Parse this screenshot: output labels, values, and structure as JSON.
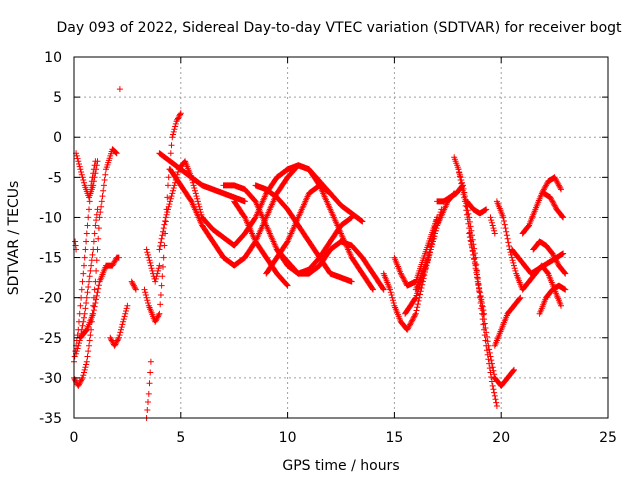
{
  "chart_data": {
    "type": "scatter",
    "title": "Day 093 of 2022, Sidereal Day-to-day VTEC variation (SDTVAR) for receiver bogt",
    "xlabel": "GPS time / hours",
    "ylabel": "SDTVAR / TECUs",
    "xlim": [
      0,
      25
    ],
    "ylim": [
      -35,
      10
    ],
    "xticks": [
      0,
      5,
      10,
      15,
      20,
      25
    ],
    "yticks": [
      10,
      5,
      0,
      -5,
      -10,
      -15,
      -20,
      -25,
      -30,
      -35
    ],
    "grid": true,
    "marker": "+",
    "color": "#ff0000",
    "series": [
      {
        "name": "s1",
        "x": [
          0.0,
          0.2,
          0.4,
          0.6,
          0.8,
          1.0
        ],
        "y": [
          -28,
          -24,
          -18,
          -12,
          -6,
          -3
        ]
      },
      {
        "name": "s2",
        "x": [
          0.0,
          0.2,
          0.4,
          0.6,
          0.8,
          1.0,
          1.2,
          1.5,
          1.8,
          2.0
        ],
        "y": [
          -30,
          -31,
          -30,
          -28,
          -24,
          -18,
          -10,
          -4,
          -1.5,
          -2
        ]
      },
      {
        "name": "s3",
        "x": [
          0.1,
          0.3,
          0.5,
          0.7,
          0.9,
          1.1
        ],
        "y": [
          -2,
          -4,
          -6,
          -7.5,
          -6,
          -3
        ]
      },
      {
        "name": "s4",
        "x": [
          0.1,
          0.3,
          0.6,
          0.9,
          1.2,
          1.5,
          1.8,
          2.0,
          2.1
        ],
        "y": [
          -27,
          -25,
          -24,
          -22,
          -18,
          -16,
          -16,
          -15,
          -15
        ]
      },
      {
        "name": "s5",
        "x": [
          0.3,
          0.5,
          0.7,
          0.9,
          1.0,
          1.1
        ],
        "y": [
          -25,
          -22,
          -18,
          -14,
          -11,
          -9
        ]
      },
      {
        "name": "s6",
        "x": [
          0.05,
          0.1
        ],
        "y": [
          -13,
          -14
        ]
      },
      {
        "name": "s7",
        "x": [
          1.7,
          1.9,
          2.1,
          2.3,
          2.5
        ],
        "y": [
          -25,
          -26,
          -25,
          -23,
          -21
        ]
      },
      {
        "name": "s8",
        "x": [
          2.7,
          2.9
        ],
        "y": [
          -18,
          -19
        ]
      },
      {
        "name": "s9",
        "x": [
          2.15
        ],
        "y": [
          6
        ]
      },
      {
        "name": "s10",
        "x": [
          3.4,
          3.5,
          3.6
        ],
        "y": [
          -35,
          -32,
          -28
        ]
      },
      {
        "name": "s11",
        "x": [
          3.3,
          3.5,
          3.8,
          4.0,
          4.2,
          4.4,
          4.6,
          4.8,
          5.0
        ],
        "y": [
          -19,
          -21,
          -23,
          -22,
          -15,
          -6,
          0,
          2,
          3
        ]
      },
      {
        "name": "s12",
        "x": [
          3.4,
          3.6,
          3.8,
          4.0
        ],
        "y": [
          -14,
          -16,
          -18,
          -16
        ]
      },
      {
        "name": "s13",
        "x": [
          4.0,
          4.3,
          4.6,
          4.9,
          5.2,
          5.5,
          5.8,
          6.0
        ],
        "y": [
          -14,
          -10,
          -7,
          -4,
          -3,
          -5,
          -8,
          -10
        ]
      },
      {
        "name": "s14",
        "x": [
          4.0,
          4.5,
          5.0,
          5.5,
          6.0,
          6.5,
          7.0,
          7.5,
          8.0
        ],
        "y": [
          -2,
          -3,
          -4,
          -5,
          -6,
          -6.5,
          -7,
          -7.5,
          -8
        ]
      },
      {
        "name": "s15",
        "x": [
          4.5,
          5.0,
          5.5,
          6.0,
          6.5,
          7.0,
          7.5,
          8.0,
          8.5,
          9.0,
          9.5,
          10.0,
          10.5,
          11.0,
          11.5,
          12.0,
          12.5,
          13.0,
          13.5
        ],
        "y": [
          -4,
          -6,
          -8,
          -11,
          -13,
          -15,
          -16,
          -15,
          -13,
          -10,
          -7,
          -5,
          -3.5,
          -4,
          -5.5,
          -7,
          -8.5,
          -9.5,
          -10.5
        ]
      },
      {
        "name": "s16",
        "x": [
          6.0,
          6.5,
          7.0,
          7.5,
          8.0,
          8.5,
          9.0,
          9.5,
          10.0,
          10.5,
          11.0,
          11.5,
          12.0,
          12.5,
          13.0,
          13.5,
          14.0
        ],
        "y": [
          -10,
          -11.5,
          -12.5,
          -13.5,
          -12,
          -10,
          -7,
          -5,
          -4,
          -3.5,
          -4,
          -6,
          -9,
          -12,
          -15,
          -17,
          -19
        ]
      },
      {
        "name": "s17",
        "x": [
          7.0,
          7.5,
          8.0,
          8.5,
          9.0,
          9.5,
          10.0,
          10.5,
          11.0,
          11.5,
          12.0,
          12.5,
          13.0,
          13.5,
          14.0,
          14.5
        ],
        "y": [
          -6,
          -6,
          -6.5,
          -8,
          -11,
          -14,
          -16,
          -17,
          -17,
          -16,
          -14,
          -13,
          -13.5,
          -15,
          -17,
          -19
        ]
      },
      {
        "name": "s18",
        "x": [
          7.5,
          8.0,
          8.5,
          9.0,
          9.5,
          10.0
        ],
        "y": [
          -8,
          -10,
          -13,
          -15,
          -17,
          -18.5
        ]
      },
      {
        "name": "s19",
        "x": [
          8.5,
          9.0,
          9.5,
          10.0,
          10.5,
          11.0,
          11.5,
          12.0,
          12.5,
          13.0
        ],
        "y": [
          -6,
          -6.5,
          -7.5,
          -9,
          -11,
          -13,
          -15,
          -17,
          -17.5,
          -18
        ]
      },
      {
        "name": "s20",
        "x": [
          9.0,
          9.5,
          10.0,
          10.5,
          11.0,
          11.5,
          12.0
        ],
        "y": [
          -17,
          -15,
          -13,
          -10,
          -7,
          -6,
          -7
        ]
      },
      {
        "name": "s21",
        "x": [
          9.5,
          10.0,
          10.5,
          11.0,
          11.5,
          12.0,
          12.5,
          13.0
        ],
        "y": [
          -14,
          -15.5,
          -17,
          -16.5,
          -15,
          -13,
          -11,
          -10
        ]
      },
      {
        "name": "s22",
        "x": [
          14.5,
          14.8,
          15.0,
          15.3,
          15.6,
          16.0,
          16.5,
          17.0
        ],
        "y": [
          -17,
          -19,
          -21,
          -23,
          -24,
          -22,
          -16,
          -10
        ]
      },
      {
        "name": "s23",
        "x": [
          15.0,
          15.3,
          15.6,
          16.0,
          16.5,
          17.0
        ],
        "y": [
          -15,
          -17,
          -18.5,
          -18,
          -14,
          -10
        ]
      },
      {
        "name": "s24",
        "x": [
          15.5,
          16.0,
          16.5,
          17.0,
          17.5,
          17.8
        ],
        "y": [
          -22,
          -20,
          -16,
          -11,
          -8,
          -7
        ]
      },
      {
        "name": "s25",
        "x": [
          16.0,
          16.3,
          16.6,
          16.9,
          17.2
        ],
        "y": [
          -19,
          -17,
          -15,
          -12,
          -9
        ]
      },
      {
        "name": "s26",
        "x": [
          17.0,
          17.3,
          17.6,
          17.9,
          18.2
        ],
        "y": [
          -8,
          -8,
          -7.5,
          -7,
          -6
        ]
      },
      {
        "name": "s27",
        "x": [
          17.8,
          18.0,
          18.2,
          18.5,
          18.8,
          19.0,
          19.3,
          19.6,
          19.8
        ],
        "y": [
          -2.5,
          -4,
          -6,
          -10,
          -15,
          -20,
          -26,
          -31,
          -33.5
        ]
      },
      {
        "name": "s28",
        "x": [
          18.0,
          18.3,
          18.6,
          18.9,
          19.2
        ],
        "y": [
          -4,
          -8,
          -13,
          -18,
          -22
        ]
      },
      {
        "name": "s29",
        "x": [
          18.4,
          18.7,
          19.0,
          19.3
        ],
        "y": [
          -8,
          -9,
          -9.5,
          -9
        ]
      },
      {
        "name": "s30",
        "x": [
          18.5,
          18.8,
          19.1,
          19.4,
          19.7,
          20.0,
          20.3,
          20.6
        ],
        "y": [
          -12,
          -16,
          -21,
          -26,
          -30,
          -31,
          -30,
          -29
        ]
      },
      {
        "name": "s31",
        "x": [
          19.5,
          19.7
        ],
        "y": [
          -10,
          -12
        ]
      },
      {
        "name": "s32",
        "x": [
          19.7,
          20.0,
          20.3,
          20.6,
          20.9
        ],
        "y": [
          -26,
          -24,
          -22,
          -21,
          -20
        ]
      },
      {
        "name": "s33",
        "x": [
          19.8,
          20.1,
          20.4,
          20.7,
          21.0,
          21.3,
          21.6,
          21.9,
          22.2,
          22.5,
          22.8
        ],
        "y": [
          -8,
          -10,
          -14,
          -17,
          -19,
          -18,
          -17,
          -16,
          -17,
          -19,
          -21
        ]
      },
      {
        "name": "s34",
        "x": [
          20.5,
          20.8,
          21.1,
          21.4,
          21.7,
          22.0,
          22.3,
          22.6,
          22.9
        ],
        "y": [
          -14,
          -15,
          -16,
          -17,
          -16.5,
          -16,
          -15.5,
          -15,
          -14.5
        ]
      },
      {
        "name": "s35",
        "x": [
          21.0,
          21.3,
          21.6,
          21.9,
          22.2,
          22.5,
          22.8
        ],
        "y": [
          -12,
          -11,
          -9,
          -7,
          -5.5,
          -5,
          -6.5
        ]
      },
      {
        "name": "s36",
        "x": [
          21.5,
          21.8,
          22.1,
          22.4,
          22.7,
          23.0
        ],
        "y": [
          -14,
          -13,
          -13.5,
          -14.5,
          -16,
          -17
        ]
      },
      {
        "name": "s37",
        "x": [
          21.8,
          22.1,
          22.4,
          22.7,
          23.0
        ],
        "y": [
          -22,
          -20,
          -19,
          -18.5,
          -19
        ]
      },
      {
        "name": "s38",
        "x": [
          22.0,
          22.3,
          22.6,
          22.9
        ],
        "y": [
          -7,
          -7.5,
          -9,
          -10
        ]
      }
    ]
  }
}
